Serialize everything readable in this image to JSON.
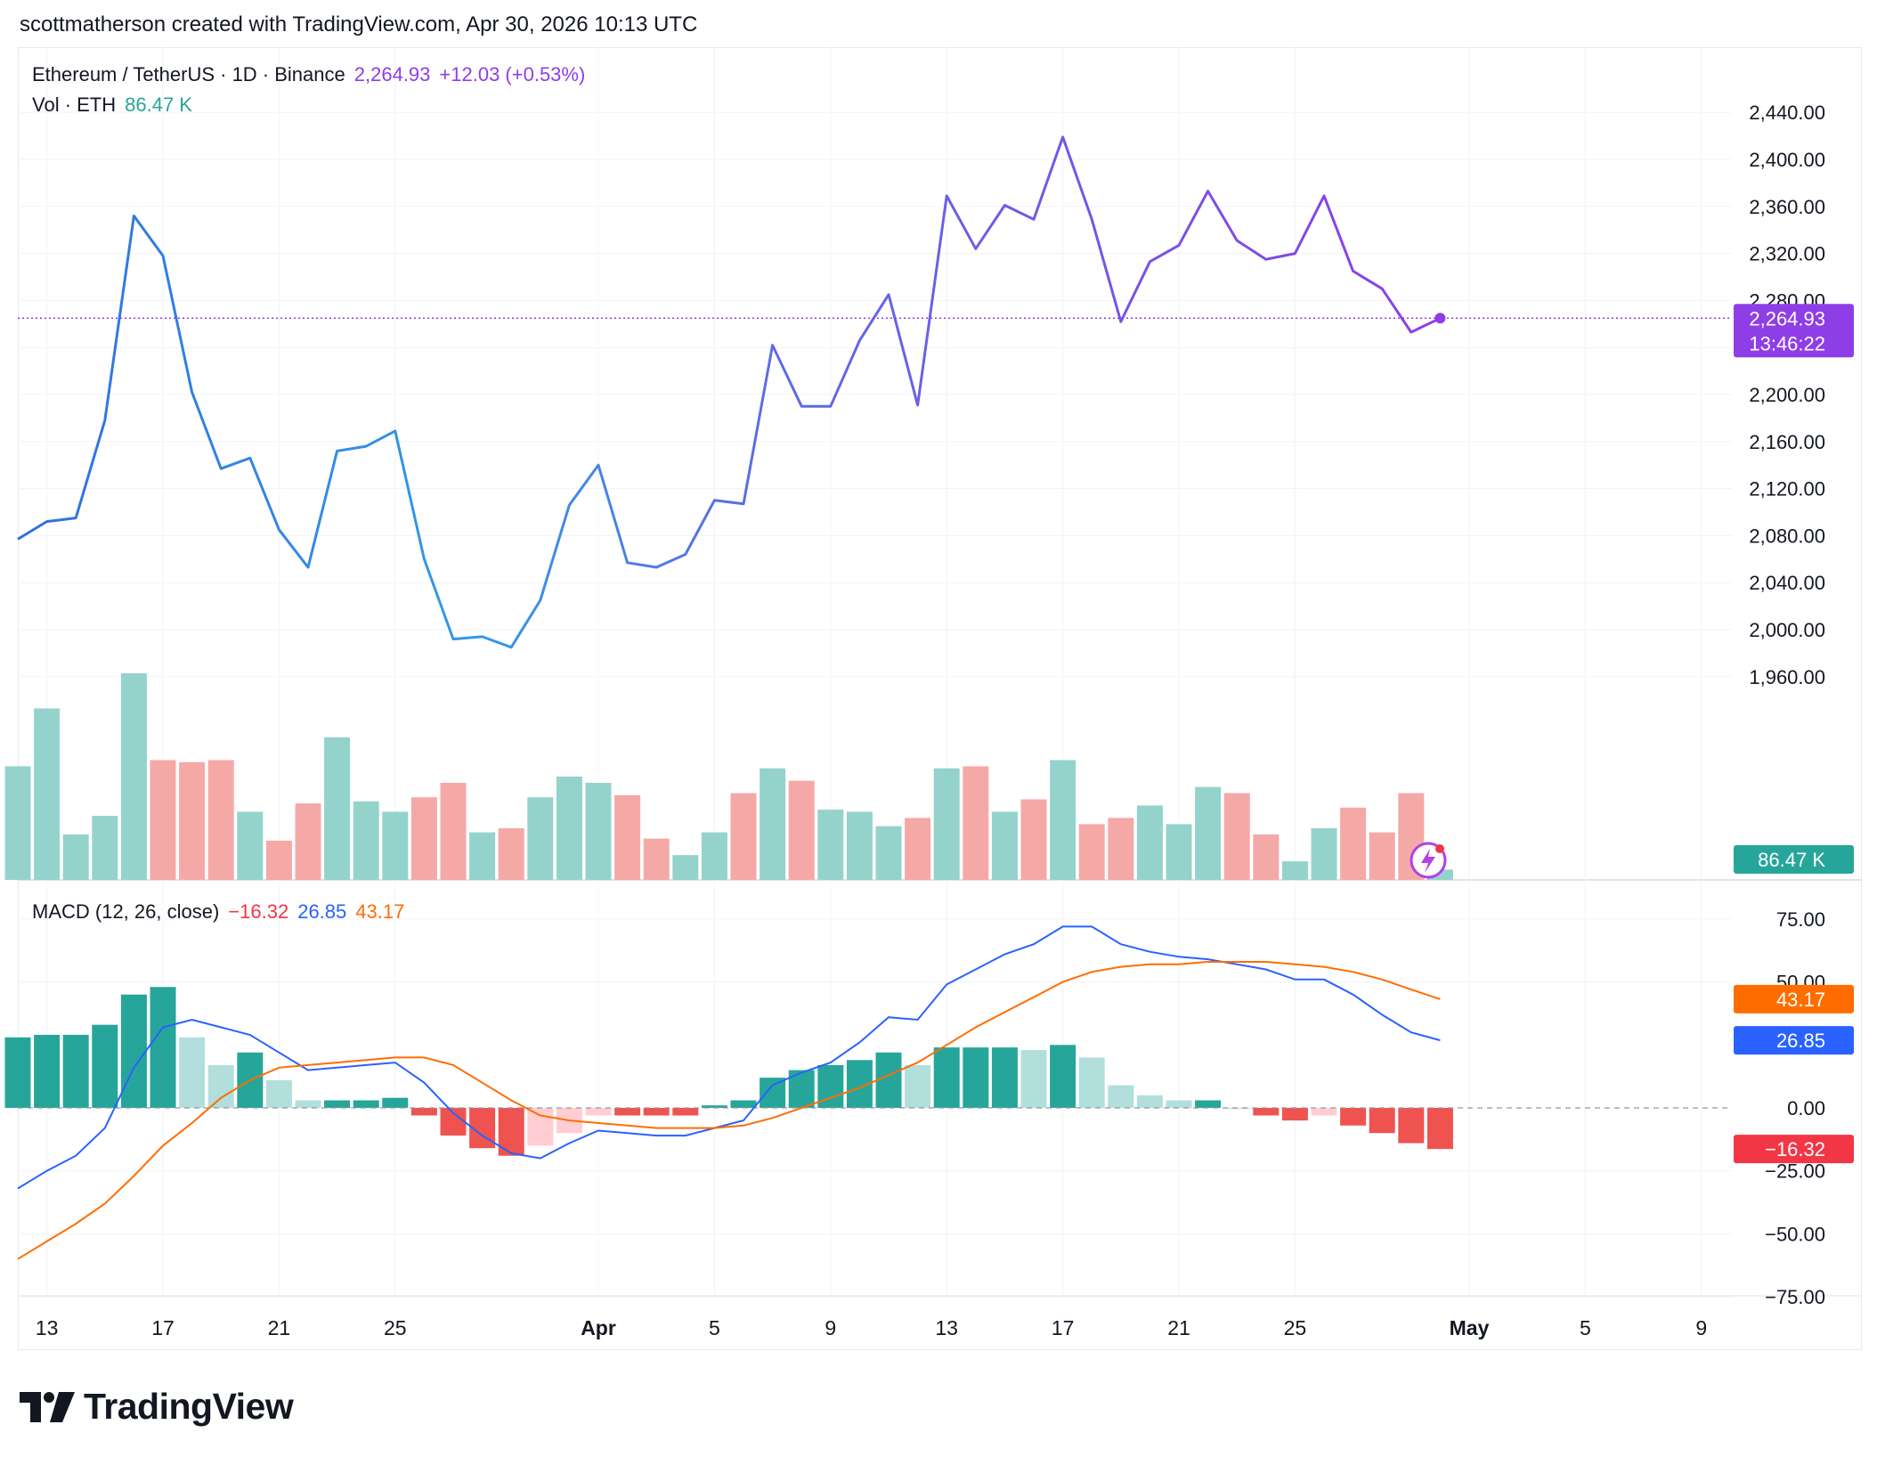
{
  "header": {
    "text": "scottmatherson created with TradingView.com, Apr 30, 2026 10:13 UTC"
  },
  "legend": {
    "symbol": "Ethereum / TetherUS · 1D · Binance",
    "price": "2,264.93",
    "change": "+12.03 (+0.53%)",
    "vol_label": "Vol · ETH",
    "vol_value": "86.47 K",
    "macd_label": "MACD (12, 26, close)",
    "macd_hist": "−16.32",
    "macd_line": "26.85",
    "macd_signal": "43.17"
  },
  "tags": {
    "price": "2,264.93",
    "countdown": "13:46:22",
    "volume": "86.47 K",
    "signal": "43.17",
    "macd": "26.85",
    "hist": "−16.32"
  },
  "logo": {
    "text": "TradingView"
  },
  "colors": {
    "purple": "#8e3ee7",
    "blue": "#2f6fe0",
    "teal": "#26a69a",
    "teal_light": "#b2dfdb",
    "red": "#ef5350",
    "red_light": "#ffcdd2",
    "vol_up": "#94d3cc",
    "vol_down": "#f5a9a7",
    "macd_blue": "#2962ff",
    "macd_orange": "#ff6d00"
  },
  "chart_data": [
    {
      "type": "line",
      "title": "Ethereum / TetherUS · 1D · Binance",
      "x": [
        "Mar 12",
        "Mar 13",
        "Mar 14",
        "Mar 15",
        "Mar 16",
        "Mar 17",
        "Mar 18",
        "Mar 19",
        "Mar 20",
        "Mar 21",
        "Mar 22",
        "Mar 23",
        "Mar 24",
        "Mar 25",
        "Mar 26",
        "Mar 27",
        "Mar 28",
        "Mar 29",
        "Mar 30",
        "Mar 31",
        "Apr 1",
        "Apr 2",
        "Apr 3",
        "Apr 4",
        "Apr 5",
        "Apr 6",
        "Apr 7",
        "Apr 8",
        "Apr 9",
        "Apr 10",
        "Apr 11",
        "Apr 12",
        "Apr 13",
        "Apr 14",
        "Apr 15",
        "Apr 16",
        "Apr 17",
        "Apr 18",
        "Apr 19",
        "Apr 20",
        "Apr 21",
        "Apr 22",
        "Apr 23",
        "Apr 24",
        "Apr 25",
        "Apr 26",
        "Apr 27",
        "Apr 28",
        "Apr 29",
        "Apr 30"
      ],
      "close": [
        2077,
        2092,
        2095,
        2178,
        2352,
        2318,
        2202,
        2137,
        2146,
        2085,
        2053,
        2152,
        2156,
        2169,
        2060,
        1992,
        1994,
        1985,
        2025,
        2106,
        2140,
        2057,
        2053,
        2064,
        2110,
        2107,
        2242,
        2190,
        2190,
        2246,
        2285,
        2191,
        2369,
        2324,
        2361,
        2349,
        2419,
        2349,
        2262,
        2313,
        2327,
        2373,
        2331,
        2315,
        2320,
        2369,
        2305,
        2290,
        2253,
        2264.93
      ],
      "volume_rel": [
        0.55,
        0.83,
        0.22,
        0.31,
        1.0,
        0.58,
        0.57,
        0.58,
        0.33,
        0.19,
        0.37,
        0.69,
        0.38,
        0.33,
        0.4,
        0.47,
        0.23,
        0.25,
        0.4,
        0.5,
        0.47,
        0.41,
        0.2,
        0.12,
        0.23,
        0.42,
        0.54,
        0.48,
        0.34,
        0.33,
        0.26,
        0.3,
        0.54,
        0.55,
        0.33,
        0.39,
        0.58,
        0.27,
        0.3,
        0.36,
        0.27,
        0.45,
        0.42,
        0.22,
        0.09,
        0.25,
        0.35,
        0.23,
        0.42,
        0.05
      ],
      "ylim": [
        1900,
        2460
      ],
      "yticks": [
        "2,440.00",
        "2,400.00",
        "2,360.00",
        "2,320.00",
        "2,280.00",
        "2,240.00",
        "2,200.00",
        "2,160.00",
        "2,120.00",
        "2,080.00",
        "2,040.00",
        "2,000.00",
        "1,960.00"
      ],
      "ytick_values": [
        2440,
        2400,
        2360,
        2320,
        2280,
        2240,
        2200,
        2160,
        2120,
        2080,
        2040,
        2000,
        1960
      ]
    },
    {
      "type": "bar",
      "title": "MACD (12, 26, close)",
      "x": [
        "Mar 12",
        "Mar 13",
        "Mar 14",
        "Mar 15",
        "Mar 16",
        "Mar 17",
        "Mar 18",
        "Mar 19",
        "Mar 20",
        "Mar 21",
        "Mar 22",
        "Mar 23",
        "Mar 24",
        "Mar 25",
        "Mar 26",
        "Mar 27",
        "Mar 28",
        "Mar 29",
        "Mar 30",
        "Mar 31",
        "Apr 1",
        "Apr 2",
        "Apr 3",
        "Apr 4",
        "Apr 5",
        "Apr 6",
        "Apr 7",
        "Apr 8",
        "Apr 9",
        "Apr 10",
        "Apr 11",
        "Apr 12",
        "Apr 13",
        "Apr 14",
        "Apr 15",
        "Apr 16",
        "Apr 17",
        "Apr 18",
        "Apr 19",
        "Apr 20",
        "Apr 21",
        "Apr 22",
        "Apr 23",
        "Apr 24",
        "Apr 25",
        "Apr 26",
        "Apr 27",
        "Apr 28",
        "Apr 29",
        "Apr 30"
      ],
      "series": [
        {
          "name": "Histogram",
          "values": [
            28,
            29,
            29,
            33,
            45,
            48,
            28,
            17,
            22,
            11,
            3,
            3,
            3,
            4,
            -3,
            -11,
            -16,
            -19,
            -15,
            -10,
            -3,
            -3,
            -3,
            -3,
            1,
            3,
            12,
            15,
            17,
            19,
            22,
            17,
            24,
            24,
            24,
            23,
            25,
            20,
            9,
            5,
            3,
            3,
            0,
            -3,
            -5,
            -3,
            -7,
            -10,
            -14,
            -16.32
          ]
        },
        {
          "name": "MACD",
          "values": [
            -32,
            -25,
            -19,
            -8,
            16,
            32,
            35,
            32,
            29,
            22,
            15,
            16,
            17,
            18,
            10,
            -2,
            -11,
            -18,
            -20,
            -14,
            -9,
            -10,
            -11,
            -11,
            -8,
            -5,
            9,
            14,
            18,
            26,
            36,
            35,
            49,
            55,
            61,
            65,
            72,
            72,
            65,
            62,
            60,
            59,
            57,
            55,
            51,
            51,
            45,
            37,
            30,
            26.85
          ]
        },
        {
          "name": "Signal",
          "values": [
            -60,
            -53,
            -46,
            -38,
            -27,
            -15,
            -6,
            4,
            11,
            16,
            17,
            18,
            19,
            20,
            20,
            17,
            10,
            3,
            -3,
            -5,
            -6,
            -7,
            -8,
            -8,
            -8,
            -7,
            -4,
            0,
            4,
            8,
            13,
            18,
            25,
            32,
            38,
            44,
            50,
            54,
            56,
            57,
            57,
            58,
            58,
            58,
            57,
            56,
            54,
            51,
            47,
            43.17
          ]
        }
      ],
      "ylim": [
        -75,
        82
      ],
      "yticks": [
        "75.00",
        "50.00",
        "0.00",
        "−25.00",
        "−50.00",
        "−75.00"
      ],
      "ytick_values": [
        75,
        50,
        0,
        -25,
        -50,
        -75
      ]
    }
  ],
  "x_axis": {
    "labels": [
      "13",
      "17",
      "21",
      "25",
      "Apr",
      "5",
      "9",
      "13",
      "17",
      "21",
      "25",
      "May",
      "5",
      "9"
    ],
    "bold": [
      false,
      false,
      false,
      false,
      true,
      false,
      false,
      false,
      false,
      false,
      false,
      true,
      false,
      false
    ]
  }
}
